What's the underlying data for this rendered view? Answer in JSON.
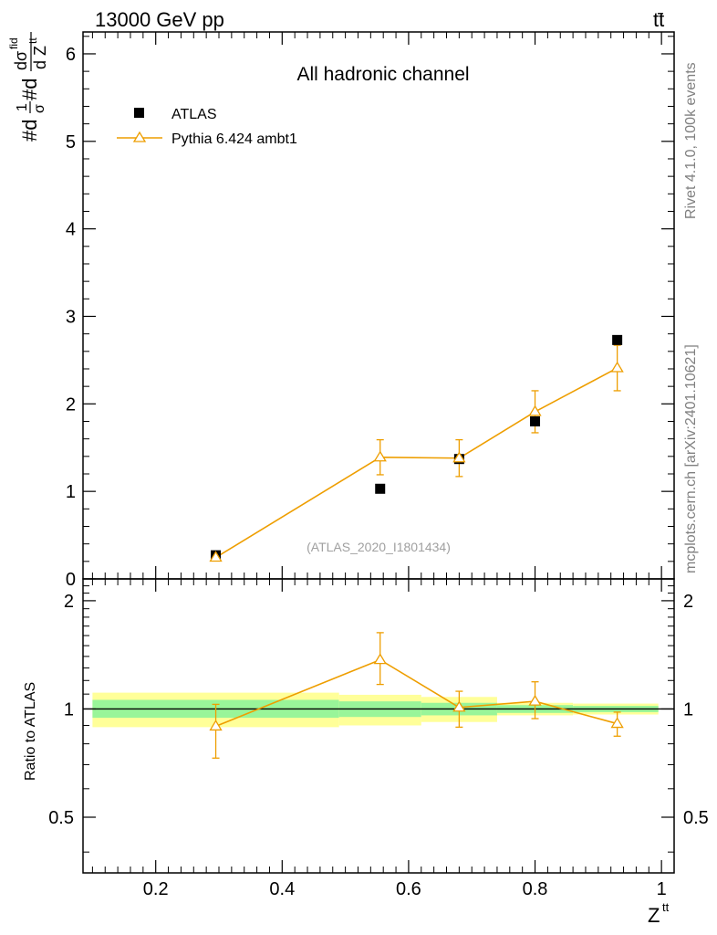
{
  "header": {
    "left": "13000 GeV pp",
    "right_main": "tt",
    "right_bar": "̄"
  },
  "side_labels": {
    "rivet": "Rivet 4.1.0,  100k events",
    "mcplots": "mcplots.cern.ch [arXiv:2401.10621]"
  },
  "chart_data": {
    "type": "scatter",
    "title": "All hadronic channel",
    "watermark": "(ATLAS_2020_I1801434)",
    "ylabel": {
      "prefix": "#d",
      "one": "1",
      "sigma": "σ",
      "mid": "#d",
      "dsig": "dσ",
      "sup": "fid",
      "den_d": "d Z",
      "den_sup": "tt"
    },
    "xlabel": {
      "main": "Z",
      "sup": "tt"
    },
    "xlim": [
      0.085,
      1.02
    ],
    "ylim": [
      0,
      6.25
    ],
    "xticks": [
      0.2,
      0.4,
      0.6,
      0.8,
      1.0
    ],
    "xtick_labels": [
      "0.2",
      "0.4",
      "0.6",
      "0.8",
      "1"
    ],
    "yticks": [
      0,
      1,
      2,
      3,
      4,
      5,
      6
    ],
    "ytick_labels": [
      "0",
      "1",
      "2",
      "3",
      "4",
      "5",
      "6"
    ],
    "legend": [
      {
        "name": "ATLAS",
        "marker": "square",
        "color": "#000000"
      },
      {
        "name": "Pythia 6.424 ambt1",
        "marker": "triangle-line",
        "color": "#ee9e00"
      }
    ],
    "series": [
      {
        "name": "ATLAS",
        "x": [
          0.295,
          0.555,
          0.68,
          0.8,
          0.93
        ],
        "y": [
          0.27,
          1.03,
          1.37,
          1.8,
          2.73
        ]
      },
      {
        "name": "Pythia 6.424 ambt1",
        "x": [
          0.295,
          0.555,
          0.68,
          0.8,
          0.93
        ],
        "y": [
          0.245,
          1.39,
          1.38,
          1.91,
          2.41
        ],
        "yerr": [
          0.03,
          0.2,
          0.21,
          0.24,
          0.26
        ]
      }
    ],
    "ratio": {
      "ylabel": "Ratio to ATLAS",
      "ylim": [
        0.35,
        2.3
      ],
      "yticks": [
        0.5,
        1,
        2
      ],
      "ytick_labels": [
        "0.5",
        "1",
        "2"
      ],
      "bins": [
        {
          "xlo": 0.1,
          "xhi": 0.49,
          "inner": [
            0.945,
            1.06
          ],
          "outer": [
            0.89,
            1.11
          ]
        },
        {
          "xlo": 0.49,
          "xhi": 0.62,
          "inner": [
            0.95,
            1.05
          ],
          "outer": [
            0.9,
            1.095
          ]
        },
        {
          "xlo": 0.62,
          "xhi": 0.74,
          "inner": [
            0.96,
            1.04
          ],
          "outer": [
            0.92,
            1.08
          ]
        },
        {
          "xlo": 0.74,
          "xhi": 0.86,
          "inner": [
            0.975,
            1.025
          ],
          "outer": [
            0.96,
            1.04
          ]
        },
        {
          "xlo": 0.86,
          "xhi": 0.995,
          "inner": [
            0.98,
            1.02
          ],
          "outer": [
            0.965,
            1.035
          ]
        }
      ],
      "x": [
        0.295,
        0.555,
        0.68,
        0.8,
        0.93
      ],
      "y": [
        0.895,
        1.37,
        1.01,
        1.05,
        0.91
      ],
      "ylow": [
        0.73,
        1.17,
        0.89,
        0.94,
        0.84
      ],
      "yhigh": [
        1.03,
        1.63,
        1.12,
        1.19,
        0.98
      ]
    }
  }
}
